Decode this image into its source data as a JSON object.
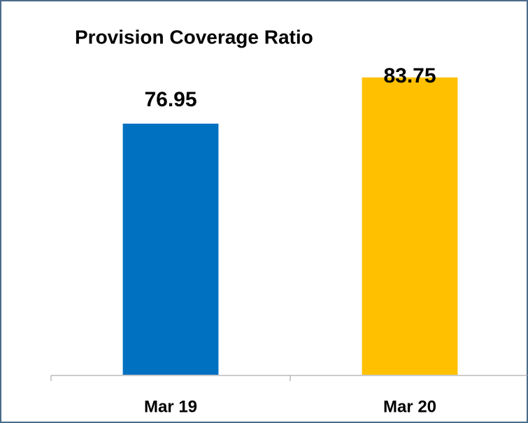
{
  "chart_data": {
    "type": "bar",
    "title": "Provision Coverage Ratio",
    "categories": [
      "Mar 19",
      "Mar 20"
    ],
    "values": [
      76.95,
      83.75
    ],
    "colors": [
      "#0070c0",
      "#ffc000"
    ],
    "ylim": [
      40,
      90
    ]
  }
}
